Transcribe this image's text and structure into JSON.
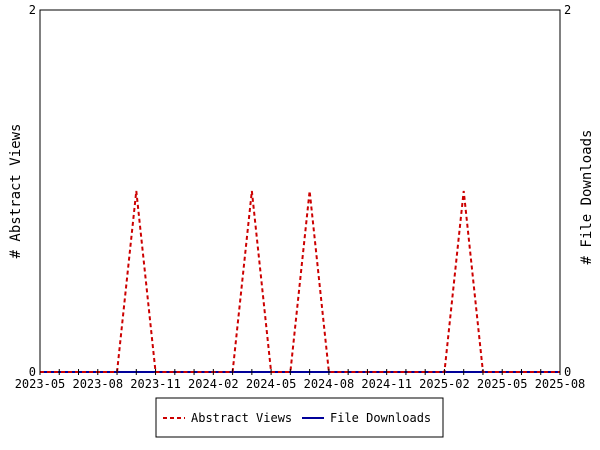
{
  "chart_data": {
    "type": "line",
    "title": "",
    "ylabel_left": "# Abstract Views",
    "ylabel_right": "# File Downloads",
    "xlabel": "",
    "x_tick_labels": [
      "2023-05",
      "2023-08",
      "2023-11",
      "2024-02",
      "2024-05",
      "2024-08",
      "2024-11",
      "2025-02",
      "2025-05",
      "2025-08"
    ],
    "y_tick_labels_left": [
      "0",
      "2"
    ],
    "y_tick_labels_right": [
      "0",
      "2"
    ],
    "ylim": [
      0,
      2
    ],
    "xlim": [
      "2023-05",
      "2025-08"
    ],
    "legend_position": "bottom",
    "series": [
      {
        "name": "Abstract Views",
        "color": "#cc0000",
        "style": "dashed",
        "points": [
          {
            "x": "2023-05",
            "y": 0
          },
          {
            "x": "2023-09",
            "y": 0
          },
          {
            "x": "2023-10",
            "y": 1
          },
          {
            "x": "2023-11",
            "y": 0
          },
          {
            "x": "2024-03",
            "y": 0
          },
          {
            "x": "2024-04",
            "y": 1
          },
          {
            "x": "2024-05",
            "y": 0
          },
          {
            "x": "2024-06",
            "y": 0
          },
          {
            "x": "2024-07",
            "y": 1
          },
          {
            "x": "2024-08",
            "y": 0
          },
          {
            "x": "2025-02",
            "y": 0
          },
          {
            "x": "2025-03",
            "y": 1
          },
          {
            "x": "2025-04",
            "y": 0
          },
          {
            "x": "2025-08",
            "y": 0
          }
        ]
      },
      {
        "name": "File Downloads",
        "color": "#000099",
        "style": "solid",
        "points": [
          {
            "x": "2023-05",
            "y": 0
          },
          {
            "x": "2025-08",
            "y": 0
          }
        ]
      }
    ]
  }
}
